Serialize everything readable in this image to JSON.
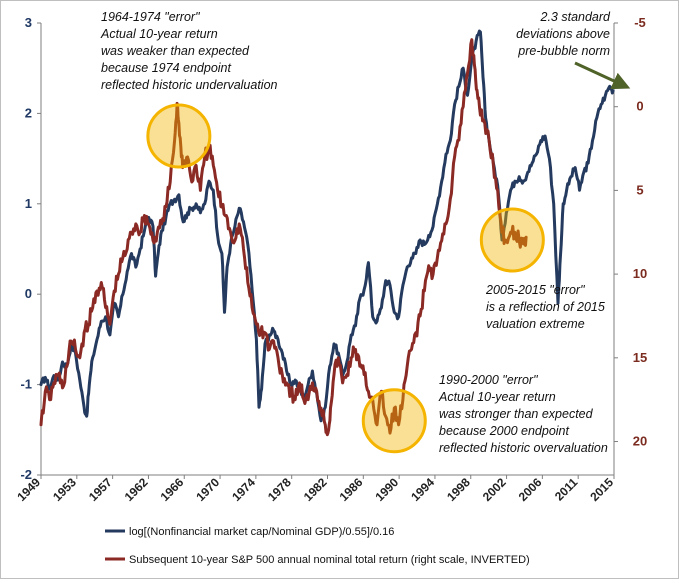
{
  "chart_data": {
    "type": "line",
    "left_axis": {
      "ylim": [
        -2,
        3
      ],
      "ticks": [
        "-2",
        "-1",
        "0",
        "1",
        "2",
        "3"
      ]
    },
    "right_axis": {
      "inverted": true,
      "ylim": [
        -5,
        22
      ],
      "ticks": [
        "-5",
        "0",
        "5",
        "10",
        "15",
        "20"
      ]
    },
    "x_axis": {
      "range": [
        1949,
        2015.5
      ],
      "ticks": [
        "1949",
        "1953",
        "1957",
        "1962",
        "1966",
        "1970",
        "1974",
        "1978",
        "1982",
        "1986",
        "1990",
        "1994",
        "1998",
        "2002",
        "2006",
        "2011",
        "2015"
      ]
    },
    "grid": false,
    "legend_position": "bottom",
    "series": [
      {
        "name": "log[(Nonfinancial market cap/Nominal GDP)/0.55]/0.16",
        "axis": "left",
        "color": "#243a5e",
        "points": [
          [
            1949.0,
            -1.0
          ],
          [
            1949.5,
            -0.92
          ],
          [
            1950.0,
            -1.05
          ],
          [
            1950.5,
            -0.9
          ],
          [
            1951.0,
            -0.95
          ],
          [
            1951.5,
            -0.75
          ],
          [
            1952.0,
            -0.8
          ],
          [
            1952.5,
            -0.55
          ],
          [
            1953.0,
            -0.65
          ],
          [
            1953.5,
            -0.95
          ],
          [
            1954.0,
            -1.25
          ],
          [
            1954.3,
            -1.35
          ],
          [
            1954.6,
            -1.0
          ],
          [
            1955.0,
            -0.7
          ],
          [
            1955.5,
            -0.5
          ],
          [
            1956.0,
            -0.3
          ],
          [
            1956.5,
            -0.25
          ],
          [
            1957.0,
            -0.45
          ],
          [
            1957.5,
            -0.1
          ],
          [
            1958.0,
            -0.25
          ],
          [
            1958.5,
            0.0
          ],
          [
            1959.0,
            0.25
          ],
          [
            1959.5,
            0.45
          ],
          [
            1960.0,
            0.3
          ],
          [
            1960.5,
            0.5
          ],
          [
            1961.0,
            0.7
          ],
          [
            1961.5,
            0.85
          ],
          [
            1962.0,
            0.75
          ],
          [
            1962.3,
            0.2
          ],
          [
            1962.6,
            0.45
          ],
          [
            1963.0,
            0.7
          ],
          [
            1963.5,
            0.85
          ],
          [
            1964.0,
            1.0
          ],
          [
            1964.5,
            1.05
          ],
          [
            1965.0,
            1.1
          ],
          [
            1965.5,
            0.8
          ],
          [
            1966.0,
            0.9
          ],
          [
            1966.5,
            0.95
          ],
          [
            1967.0,
            1.0
          ],
          [
            1967.5,
            0.9
          ],
          [
            1968.0,
            1.0
          ],
          [
            1968.5,
            1.25
          ],
          [
            1969.0,
            1.15
          ],
          [
            1969.5,
            0.65
          ],
          [
            1970.0,
            0.45
          ],
          [
            1970.3,
            -0.2
          ],
          [
            1970.6,
            0.3
          ],
          [
            1971.0,
            0.55
          ],
          [
            1971.5,
            0.75
          ],
          [
            1972.0,
            0.95
          ],
          [
            1972.5,
            0.8
          ],
          [
            1973.0,
            0.55
          ],
          [
            1973.5,
            0.05
          ],
          [
            1974.0,
            -0.5
          ],
          [
            1974.3,
            -1.25
          ],
          [
            1974.6,
            -1.05
          ],
          [
            1975.0,
            -0.55
          ],
          [
            1975.5,
            -0.45
          ],
          [
            1976.0,
            -0.4
          ],
          [
            1976.5,
            -0.5
          ],
          [
            1977.0,
            -0.65
          ],
          [
            1977.5,
            -0.85
          ],
          [
            1978.0,
            -1.0
          ],
          [
            1978.5,
            -0.95
          ],
          [
            1979.0,
            -1.05
          ],
          [
            1979.5,
            -1.15
          ],
          [
            1980.0,
            -1.0
          ],
          [
            1980.5,
            -0.85
          ],
          [
            1981.0,
            -1.1
          ],
          [
            1981.5,
            -1.4
          ],
          [
            1982.0,
            -1.25
          ],
          [
            1982.5,
            -0.8
          ],
          [
            1983.0,
            -0.55
          ],
          [
            1983.5,
            -0.65
          ],
          [
            1984.0,
            -0.9
          ],
          [
            1984.5,
            -0.75
          ],
          [
            1985.0,
            -0.45
          ],
          [
            1985.5,
            -0.35
          ],
          [
            1986.0,
            -0.05
          ],
          [
            1986.5,
            0.05
          ],
          [
            1987.0,
            0.35
          ],
          [
            1987.5,
            -0.25
          ],
          [
            1988.0,
            -0.3
          ],
          [
            1988.5,
            -0.15
          ],
          [
            1989.0,
            0.15
          ],
          [
            1989.5,
            0.1
          ],
          [
            1990.0,
            -0.2
          ],
          [
            1990.5,
            -0.25
          ],
          [
            1991.0,
            0.1
          ],
          [
            1991.5,
            0.3
          ],
          [
            1992.0,
            0.4
          ],
          [
            1992.5,
            0.45
          ],
          [
            1993.0,
            0.6
          ],
          [
            1993.5,
            0.55
          ],
          [
            1994.0,
            0.65
          ],
          [
            1994.5,
            0.75
          ],
          [
            1995.0,
            1.0
          ],
          [
            1995.5,
            1.25
          ],
          [
            1996.0,
            1.55
          ],
          [
            1996.5,
            1.7
          ],
          [
            1997.0,
            2.1
          ],
          [
            1997.5,
            2.3
          ],
          [
            1998.0,
            2.5
          ],
          [
            1998.5,
            2.2
          ],
          [
            1999.0,
            2.6
          ],
          [
            1999.5,
            2.8
          ],
          [
            2000.0,
            2.9
          ],
          [
            2000.3,
            2.4
          ],
          [
            2000.6,
            1.95
          ],
          [
            2001.0,
            1.7
          ],
          [
            2001.5,
            1.45
          ],
          [
            2002.0,
            1.2
          ],
          [
            2002.5,
            0.6
          ],
          [
            2003.0,
            0.9
          ],
          [
            2003.5,
            1.15
          ],
          [
            2004.0,
            1.25
          ],
          [
            2004.5,
            1.3
          ],
          [
            2005.0,
            1.25
          ],
          [
            2005.5,
            1.35
          ],
          [
            2006.0,
            1.45
          ],
          [
            2006.5,
            1.55
          ],
          [
            2007.0,
            1.7
          ],
          [
            2007.5,
            1.75
          ],
          [
            2008.0,
            1.5
          ],
          [
            2008.5,
            1.0
          ],
          [
            2009.0,
            -0.1
          ],
          [
            2009.3,
            0.45
          ],
          [
            2009.6,
            1.0
          ],
          [
            2010.0,
            1.15
          ],
          [
            2010.5,
            1.3
          ],
          [
            2011.0,
            1.4
          ],
          [
            2011.5,
            1.15
          ],
          [
            2012.0,
            1.35
          ],
          [
            2012.5,
            1.45
          ],
          [
            2013.0,
            1.7
          ],
          [
            2013.5,
            1.95
          ],
          [
            2014.0,
            2.1
          ],
          [
            2014.5,
            2.2
          ],
          [
            2015.0,
            2.3
          ],
          [
            2015.4,
            2.25
          ]
        ]
      },
      {
        "name": "Subsequent 10-year S&P 500 annual nominal total return (right scale, INVERTED)",
        "axis": "right",
        "color": "#8b2a24",
        "points": [
          [
            1949.0,
            19.0
          ],
          [
            1949.5,
            17.0
          ],
          [
            1950.0,
            17.5
          ],
          [
            1950.5,
            16.5
          ],
          [
            1951.0,
            16.0
          ],
          [
            1951.5,
            16.8
          ],
          [
            1952.0,
            15.5
          ],
          [
            1952.5,
            14.0
          ],
          [
            1953.0,
            14.5
          ],
          [
            1953.5,
            15.0
          ],
          [
            1954.0,
            13.5
          ],
          [
            1954.5,
            13.0
          ],
          [
            1955.0,
            12.0
          ],
          [
            1955.5,
            11.0
          ],
          [
            1956.0,
            10.5
          ],
          [
            1956.5,
            12.0
          ],
          [
            1957.0,
            13.0
          ],
          [
            1957.5,
            11.0
          ],
          [
            1958.0,
            10.0
          ],
          [
            1958.5,
            9.0
          ],
          [
            1959.0,
            8.5
          ],
          [
            1959.5,
            7.5
          ],
          [
            1960.0,
            7.0
          ],
          [
            1960.5,
            7.5
          ],
          [
            1961.0,
            6.5
          ],
          [
            1961.5,
            7.0
          ],
          [
            1962.0,
            8.0
          ],
          [
            1962.5,
            7.5
          ],
          [
            1963.0,
            7.0
          ],
          [
            1963.5,
            6.0
          ],
          [
            1964.0,
            4.5
          ],
          [
            1964.5,
            2.0
          ],
          [
            1964.8,
            -0.2
          ],
          [
            1965.0,
            1.0
          ],
          [
            1965.3,
            3.0
          ],
          [
            1965.6,
            3.5
          ],
          [
            1966.0,
            3.0
          ],
          [
            1966.5,
            4.5
          ],
          [
            1967.0,
            3.5
          ],
          [
            1967.5,
            5.0
          ],
          [
            1968.0,
            3.0
          ],
          [
            1968.5,
            2.5
          ],
          [
            1969.0,
            3.5
          ],
          [
            1969.5,
            5.0
          ],
          [
            1970.0,
            6.0
          ],
          [
            1970.5,
            6.5
          ],
          [
            1971.0,
            7.5
          ],
          [
            1971.5,
            8.0
          ],
          [
            1972.0,
            7.0
          ],
          [
            1972.5,
            8.5
          ],
          [
            1973.0,
            10.5
          ],
          [
            1973.5,
            12.0
          ],
          [
            1974.0,
            13.0
          ],
          [
            1974.5,
            13.5
          ],
          [
            1975.0,
            13.5
          ],
          [
            1975.5,
            14.5
          ],
          [
            1976.0,
            14.0
          ],
          [
            1976.5,
            15.0
          ],
          [
            1977.0,
            16.0
          ],
          [
            1977.5,
            16.5
          ],
          [
            1978.0,
            17.0
          ],
          [
            1978.5,
            17.5
          ],
          [
            1979.0,
            16.5
          ],
          [
            1979.5,
            17.5
          ],
          [
            1980.0,
            17.5
          ],
          [
            1980.5,
            16.5
          ],
          [
            1981.0,
            17.0
          ],
          [
            1981.5,
            18.0
          ],
          [
            1982.0,
            19.0
          ],
          [
            1982.3,
            19.5
          ],
          [
            1982.6,
            18.0
          ],
          [
            1983.0,
            16.0
          ],
          [
            1983.5,
            15.0
          ],
          [
            1984.0,
            16.5
          ],
          [
            1984.5,
            16.0
          ],
          [
            1985.0,
            15.0
          ],
          [
            1985.5,
            14.5
          ],
          [
            1986.0,
            15.5
          ],
          [
            1986.5,
            16.0
          ],
          [
            1987.0,
            17.0
          ],
          [
            1987.5,
            17.5
          ],
          [
            1988.0,
            19.0
          ],
          [
            1988.5,
            17.0
          ],
          [
            1989.0,
            18.5
          ],
          [
            1989.5,
            19.5
          ],
          [
            1990.0,
            18.0
          ],
          [
            1990.5,
            19.0
          ],
          [
            1991.0,
            17.5
          ],
          [
            1991.5,
            15.5
          ],
          [
            1992.0,
            14.5
          ],
          [
            1992.5,
            13.5
          ],
          [
            1993.0,
            12.5
          ],
          [
            1993.5,
            11.0
          ],
          [
            1994.0,
            9.5
          ],
          [
            1994.5,
            10.0
          ],
          [
            1995.0,
            9.0
          ],
          [
            1995.5,
            8.0
          ],
          [
            1996.0,
            7.0
          ],
          [
            1996.5,
            5.5
          ],
          [
            1997.0,
            3.0
          ],
          [
            1997.5,
            2.0
          ],
          [
            1998.0,
            0.0
          ],
          [
            1998.5,
            -2.0
          ],
          [
            1999.0,
            -4.0
          ],
          [
            1999.3,
            -2.5
          ],
          [
            1999.6,
            -1.0
          ],
          [
            2000.0,
            0.5
          ],
          [
            2000.5,
            1.0
          ],
          [
            2001.0,
            2.0
          ],
          [
            2001.5,
            3.5
          ],
          [
            2002.0,
            5.0
          ],
          [
            2002.5,
            7.5
          ],
          [
            2003.0,
            8.0
          ],
          [
            2003.5,
            7.5
          ],
          [
            2004.0,
            7.5
          ],
          [
            2004.5,
            8.0
          ],
          [
            2005.0,
            8.2
          ],
          [
            2005.3,
            7.8
          ]
        ]
      }
    ],
    "annotations": [
      {
        "lines": [
          "1964-1974  \"error\"",
          "Actual 10-year return",
          "was weaker than expected",
          "because 1974 endpoint",
          "reflected historic undervaluation"
        ]
      },
      {
        "lines": [
          "2.3 standard",
          "deviations above",
          "pre-bubble norm"
        ]
      },
      {
        "lines": [
          "2005-2015  \"error\"",
          "is a reflection of 2015",
          "valuation extreme"
        ]
      },
      {
        "lines": [
          "1990-2000  \"error\"",
          "Actual 10-year return",
          "was stronger than expected",
          "because 2000  endpoint",
          "reflected historic overvaluation"
        ]
      }
    ],
    "highlight_circles": [
      {
        "x": 1965.0,
        "y_left": 1.75
      },
      {
        "x": 2003.7,
        "y_left": 0.6
      },
      {
        "x": 1990.0,
        "y_left": -1.4
      }
    ],
    "highlight_color": "#f4b400",
    "arrow_color": "#4f6228"
  }
}
